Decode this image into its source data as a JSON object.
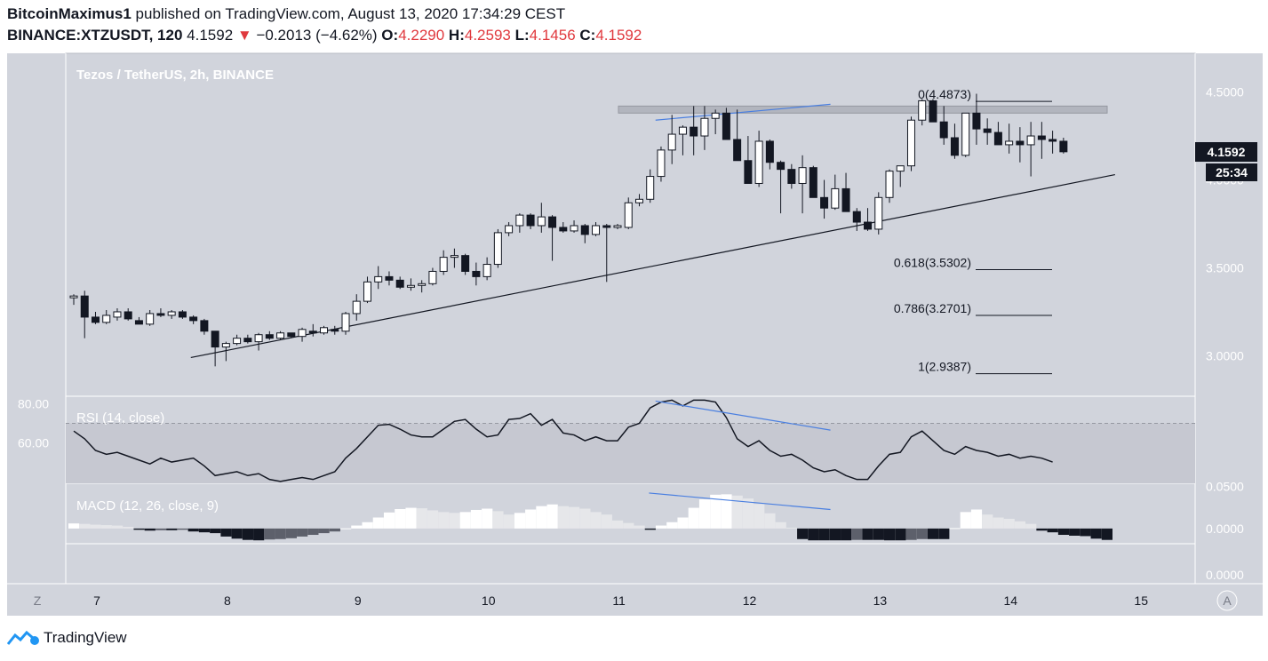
{
  "header": {
    "author": "BitcoinMaximus1",
    "published": "published on TradingView.com, August 13, 2020 17:34:29 CEST",
    "symbol": "BINANCE:XTZUSDT, 120",
    "last": "4.1592",
    "change_arrow": "▼",
    "change": "−0.2013 (−4.62%)",
    "o_label": "O:",
    "o": "4.2290",
    "h_label": "H:",
    "h": "4.2593",
    "l_label": "L:",
    "l": "4.1456",
    "c_label": "C:",
    "c": "4.1592"
  },
  "footer": {
    "brand": "TradingView"
  },
  "colors": {
    "panel_bg": "#d1d4dc",
    "up": "#ffffff",
    "down": "#131722",
    "divergence": "#4a7fe0",
    "price_label_bg": "#131722"
  },
  "chart_data": [
    {
      "type": "candlestick",
      "title": "Tezos / TetherUS, 2h, BINANCE",
      "x_tick_labels": [
        "7",
        "8",
        "9",
        "10",
        "11",
        "12",
        "13",
        "14",
        "15"
      ],
      "y_tick_labels": [
        "4.5000",
        "4.0000",
        "3.5000",
        "3.0000"
      ],
      "ylim": [
        2.77,
        4.72
      ],
      "last_price_label": "4.1592",
      "countdown_label": "25:34",
      "candles_ohlc": [
        [
          3.33,
          3.35,
          3.29,
          3.34
        ],
        [
          3.34,
          3.37,
          3.1,
          3.22
        ],
        [
          3.22,
          3.25,
          3.18,
          3.19
        ],
        [
          3.19,
          3.26,
          3.18,
          3.23
        ],
        [
          3.22,
          3.27,
          3.2,
          3.25
        ],
        [
          3.25,
          3.27,
          3.2,
          3.21
        ],
        [
          3.2,
          3.22,
          3.18,
          3.18
        ],
        [
          3.18,
          3.26,
          3.17,
          3.24
        ],
        [
          3.24,
          3.27,
          3.22,
          3.23
        ],
        [
          3.23,
          3.26,
          3.21,
          3.25
        ],
        [
          3.25,
          3.26,
          3.21,
          3.22
        ],
        [
          3.22,
          3.23,
          3.18,
          3.2
        ],
        [
          3.2,
          3.21,
          3.12,
          3.14
        ],
        [
          3.14,
          3.14,
          2.94,
          3.05
        ],
        [
          3.05,
          3.08,
          2.97,
          3.07
        ],
        [
          3.07,
          3.12,
          3.06,
          3.1
        ],
        [
          3.1,
          3.12,
          3.07,
          3.08
        ],
        [
          3.08,
          3.13,
          3.03,
          3.12
        ],
        [
          3.12,
          3.14,
          3.09,
          3.1
        ],
        [
          3.1,
          3.14,
          3.09,
          3.13
        ],
        [
          3.13,
          3.13,
          3.1,
          3.11
        ],
        [
          3.11,
          3.16,
          3.08,
          3.15
        ],
        [
          3.14,
          3.18,
          3.11,
          3.13
        ],
        [
          3.13,
          3.17,
          3.12,
          3.16
        ],
        [
          3.15,
          3.17,
          3.12,
          3.14
        ],
        [
          3.14,
          3.25,
          3.12,
          3.24
        ],
        [
          3.24,
          3.35,
          3.2,
          3.31
        ],
        [
          3.31,
          3.45,
          3.3,
          3.42
        ],
        [
          3.42,
          3.51,
          3.38,
          3.45
        ],
        [
          3.45,
          3.48,
          3.4,
          3.43
        ],
        [
          3.43,
          3.45,
          3.38,
          3.39
        ],
        [
          3.39,
          3.44,
          3.37,
          3.4
        ],
        [
          3.4,
          3.43,
          3.36,
          3.41
        ],
        [
          3.41,
          3.5,
          3.4,
          3.48
        ],
        [
          3.48,
          3.6,
          3.46,
          3.56
        ],
        [
          3.56,
          3.61,
          3.5,
          3.57
        ],
        [
          3.57,
          3.58,
          3.46,
          3.48
        ],
        [
          3.48,
          3.53,
          3.4,
          3.45
        ],
        [
          3.45,
          3.56,
          3.43,
          3.52
        ],
        [
          3.52,
          3.72,
          3.5,
          3.7
        ],
        [
          3.7,
          3.76,
          3.68,
          3.74
        ],
        [
          3.74,
          3.81,
          3.7,
          3.8
        ],
        [
          3.8,
          3.81,
          3.72,
          3.74
        ],
        [
          3.74,
          3.87,
          3.7,
          3.79
        ],
        [
          3.79,
          3.8,
          3.54,
          3.73
        ],
        [
          3.73,
          3.76,
          3.7,
          3.71
        ],
        [
          3.71,
          3.77,
          3.7,
          3.74
        ],
        [
          3.74,
          3.75,
          3.64,
          3.69
        ],
        [
          3.69,
          3.76,
          3.68,
          3.74
        ],
        [
          3.74,
          3.75,
          3.42,
          3.73
        ],
        [
          3.73,
          3.75,
          3.72,
          3.74
        ],
        [
          3.73,
          3.9,
          3.72,
          3.87
        ],
        [
          3.87,
          3.92,
          3.85,
          3.89
        ],
        [
          3.89,
          4.06,
          3.87,
          4.02
        ],
        [
          4.02,
          4.19,
          3.99,
          4.17
        ],
        [
          4.17,
          4.37,
          4.09,
          4.26
        ],
        [
          4.26,
          4.31,
          4.14,
          4.3
        ],
        [
          4.3,
          4.42,
          4.14,
          4.25
        ],
        [
          4.25,
          4.42,
          4.17,
          4.35
        ],
        [
          4.35,
          4.4,
          4.26,
          4.38
        ],
        [
          4.38,
          4.41,
          4.25,
          4.23
        ],
        [
          4.23,
          4.4,
          4.14,
          4.11
        ],
        [
          4.11,
          4.25,
          4.05,
          3.98
        ],
        [
          3.98,
          4.28,
          3.96,
          4.22
        ],
        [
          4.22,
          4.23,
          4.06,
          4.1
        ],
        [
          4.1,
          4.11,
          3.81,
          4.06
        ],
        [
          4.06,
          4.09,
          3.95,
          3.98
        ],
        [
          3.98,
          4.14,
          3.81,
          4.07
        ],
        [
          4.07,
          4.08,
          3.92,
          3.9
        ],
        [
          3.9,
          4.0,
          3.78,
          3.84
        ],
        [
          3.84,
          4.03,
          3.83,
          3.95
        ],
        [
          3.95,
          4.04,
          3.82,
          3.82
        ],
        [
          3.82,
          3.84,
          3.71,
          3.76
        ],
        [
          3.76,
          3.84,
          3.71,
          3.72
        ],
        [
          3.72,
          3.93,
          3.69,
          3.9
        ],
        [
          3.9,
          4.06,
          3.87,
          4.05
        ],
        [
          4.05,
          4.07,
          3.96,
          4.08
        ],
        [
          4.08,
          4.36,
          4.05,
          4.34
        ],
        [
          4.34,
          4.46,
          4.31,
          4.45
        ],
        [
          4.45,
          4.46,
          4.34,
          4.33
        ],
        [
          4.33,
          4.42,
          4.2,
          4.24
        ],
        [
          4.24,
          4.32,
          4.12,
          4.14
        ],
        [
          4.14,
          4.38,
          4.13,
          4.38
        ],
        [
          4.38,
          4.49,
          4.2,
          4.29
        ],
        [
          4.29,
          4.35,
          4.2,
          4.27
        ],
        [
          4.27,
          4.33,
          4.21,
          4.2
        ],
        [
          4.2,
          4.32,
          4.15,
          4.22
        ],
        [
          4.22,
          4.3,
          4.1,
          4.2
        ],
        [
          4.2,
          4.33,
          4.02,
          4.25
        ],
        [
          4.25,
          4.33,
          4.12,
          4.23
        ],
        [
          4.23,
          4.28,
          4.15,
          4.22
        ],
        [
          4.22,
          4.24,
          4.15,
          4.16
        ]
      ],
      "fibonacci_levels": [
        {
          "label": "0(4.4873)",
          "value": 4.4873
        },
        {
          "label": "0.618(3.5302)",
          "value": 3.5302
        },
        {
          "label": "0.786(3.2701)",
          "value": 3.2701
        },
        {
          "label": "1(2.9387)",
          "value": 2.9387
        }
      ],
      "resistance_zone": [
        4.38,
        4.42
      ],
      "ascending_support_line": [
        {
          "x": 7.72,
          "y": 2.99
        },
        {
          "x": 14.8,
          "y": 4.03
        }
      ],
      "divergence_line": [
        {
          "x": 11.28,
          "y": 4.34
        },
        {
          "x": 12.62,
          "y": 4.43
        }
      ]
    },
    {
      "type": "line",
      "title": "RSI (14, close)",
      "y_tick_labels": [
        "80.00",
        "60.00"
      ],
      "ylim": [
        39,
        84
      ],
      "band": [
        30,
        70
      ],
      "series": [
        {
          "values": [
            66,
            62,
            56,
            54,
            55,
            53,
            51,
            49,
            52,
            50,
            51,
            52,
            48,
            43,
            44,
            45,
            43,
            44,
            41,
            40,
            41,
            42,
            41,
            43,
            45,
            52,
            57,
            63,
            69,
            69.5,
            67,
            64,
            63,
            63,
            67,
            71,
            72,
            67,
            63,
            64,
            72,
            72.5,
            75,
            69,
            72,
            65,
            64,
            61,
            63,
            61,
            61,
            68,
            70,
            78,
            81,
            82,
            79,
            82,
            82,
            81,
            73,
            62,
            58,
            61,
            56,
            53,
            54,
            51,
            47,
            45,
            46,
            43,
            41,
            41,
            48,
            54,
            55,
            63,
            66,
            61,
            56,
            54,
            58,
            56,
            55,
            53,
            54,
            52,
            53,
            52,
            50
          ]
        }
      ],
      "divergence_line": [
        {
          "x": 11.28,
          "y": 81.5
        },
        {
          "x": 12.62,
          "y": 66.5
        }
      ]
    },
    {
      "type": "bar",
      "title": "MACD (12, 26, close, 9)",
      "y_tick_labels": [
        "0.0500",
        "0.0000",
        "0.0000"
      ],
      "ylim": [
        -0.018,
        0.0535
      ],
      "series": [
        {
          "values": [
            0.006,
            0.0055,
            0.0045,
            0.004,
            0.0035,
            0.002,
            -0.0015,
            -0.0025,
            -0.002,
            -0.002,
            -0.0015,
            -0.0035,
            -0.0045,
            -0.0055,
            -0.0095,
            -0.012,
            -0.0135,
            -0.014,
            -0.013,
            -0.0125,
            -0.0115,
            -0.0095,
            -0.0075,
            -0.0055,
            -0.0035,
            0.0002,
            0.0035,
            0.0075,
            0.013,
            0.019,
            0.023,
            0.0245,
            0.024,
            0.0215,
            0.0195,
            0.0185,
            0.0195,
            0.022,
            0.0235,
            0.0205,
            0.0165,
            0.0185,
            0.0225,
            0.0265,
            0.0285,
            0.0265,
            0.0255,
            0.0235,
            0.0195,
            0.0165,
            0.0095,
            0.0065,
            0.0035,
            -0.0015,
            0.0035,
            0.0075,
            0.013,
            0.0245,
            0.0345,
            0.04,
            0.0405,
            0.039,
            0.0355,
            0.029,
            0.018,
            0.0075,
            0.001,
            -0.0125,
            -0.014,
            -0.014,
            -0.014,
            -0.014,
            -0.0135,
            -0.0135,
            -0.0135,
            -0.014,
            -0.014,
            -0.0135,
            -0.0125,
            -0.0125,
            -0.0125,
            0.0005,
            0.0195,
            0.0225,
            0.0165,
            0.013,
            0.0115,
            0.0085,
            0.0055,
            -0.0025,
            -0.0045,
            -0.0075,
            -0.0085,
            -0.009,
            -0.012,
            -0.0135
          ]
        }
      ],
      "divergence_line": [
        {
          "x": 11.23,
          "y": 0.042
        },
        {
          "x": 12.62,
          "y": 0.0225
        }
      ]
    }
  ],
  "toolbar": {
    "z_label": "Z",
    "a_label": "A"
  }
}
